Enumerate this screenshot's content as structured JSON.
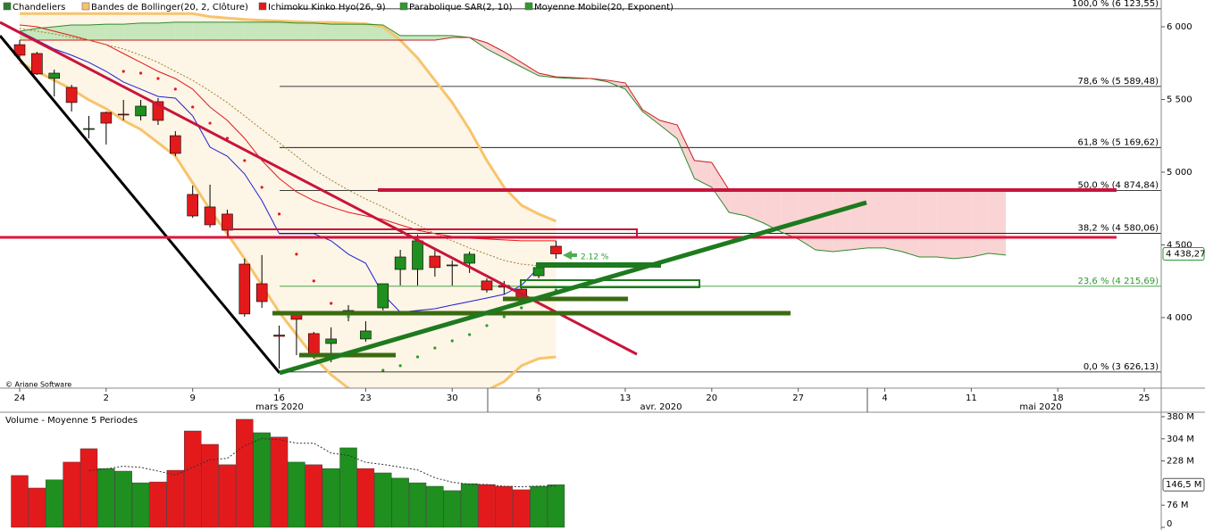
{
  "chart_data": [
    {
      "type": "candlestick",
      "categories": [
        "24",
        null,
        null,
        null,
        null,
        "2",
        null,
        null,
        null,
        null,
        "9",
        null,
        null,
        null,
        null,
        "16",
        null,
        null,
        null,
        null,
        "23",
        null,
        null,
        null,
        null,
        "30",
        null,
        null,
        null,
        null,
        "6",
        null,
        null,
        null,
        null,
        "13",
        null,
        null,
        null,
        null,
        "20",
        null,
        null,
        null,
        null,
        "27",
        null,
        null,
        null,
        null,
        "4",
        null,
        null,
        null,
        null,
        "11",
        null,
        null,
        null,
        null,
        "18",
        null,
        null,
        null,
        null,
        "25",
        null
      ],
      "candles": {
        "name": "Chandeliers",
        "color": "#2d7d2d",
        "up_color": "#1f8f1f",
        "down_color": "#e31a1c",
        "open": [
          5877,
          5816,
          5645,
          5583,
          5294,
          5411,
          5399,
          5387,
          5485,
          5251,
          4847,
          4761,
          4712,
          4368,
          4233,
          3880,
          4025,
          3890,
          3822,
          4045,
          3853,
          4067,
          4331,
          4331,
          4423,
          4360,
          4374,
          4252,
          4221,
          4196,
          4288,
          4491,
          null,
          null,
          null,
          null,
          null,
          null,
          null,
          null,
          null,
          null,
          null,
          null,
          null,
          null,
          null,
          null,
          null,
          null,
          null,
          null,
          null,
          null,
          null,
          null,
          null,
          null,
          null,
          null,
          null,
          null,
          null,
          null,
          null,
          null,
          null
        ],
        "high": [
          5908,
          5828,
          5705,
          5601,
          5387,
          5417,
          5497,
          5497,
          5509,
          5282,
          4908,
          4914,
          4742,
          4405,
          4430,
          3945,
          4037,
          3902,
          3933,
          4086,
          3975,
          4233,
          4466,
          4571,
          4466,
          4393,
          4454,
          4270,
          4252,
          4209,
          4362,
          4528,
          null,
          null,
          null,
          null,
          null,
          null,
          null,
          null,
          null,
          null,
          null,
          null,
          null,
          null,
          null,
          null,
          null,
          null,
          null,
          null,
          null,
          null,
          null,
          null,
          null,
          null,
          null,
          null,
          null,
          null,
          null,
          null,
          null,
          null,
          null
        ],
        "low": [
          5779,
          5669,
          5521,
          5417,
          5233,
          5190,
          5356,
          5356,
          5325,
          5110,
          4687,
          4620,
          4577,
          4006,
          4067,
          3650,
          3742,
          3718,
          3693,
          3975,
          3834,
          4049,
          4221,
          4221,
          4282,
          4221,
          4307,
          4172,
          4160,
          4135,
          4270,
          4405,
          null,
          null,
          null,
          null,
          null,
          null,
          null,
          null,
          null,
          null,
          null,
          null,
          null,
          null,
          null,
          null,
          null,
          null,
          null,
          null,
          null,
          null,
          null,
          null,
          null,
          null,
          null,
          null,
          null,
          null,
          null,
          null,
          null,
          null,
          null
        ],
        "close": [
          5804,
          5675,
          5681,
          5479,
          5300,
          5337,
          5395,
          5454,
          5356,
          5129,
          4699,
          4638,
          4601,
          4025,
          4110,
          3871,
          3988,
          3742,
          3853,
          4049,
          3908,
          4233,
          4417,
          4528,
          4344,
          4362,
          4436,
          4190,
          4209,
          4141,
          4344,
          4438.27,
          null,
          null,
          null,
          null,
          null,
          null,
          null,
          null,
          null,
          null,
          null,
          null,
          null,
          null,
          null,
          null,
          null,
          null,
          null,
          null,
          null,
          null,
          null,
          null,
          null,
          null,
          null,
          null,
          null,
          null,
          null,
          null,
          null,
          null,
          null
        ]
      },
      "bollinger": {
        "name": "Bandes de Bollinger(20, 2, Clôture)",
        "color": "#f7c46c",
        "fill": "#fdf5e6",
        "upper": [
          6090,
          6090,
          6090,
          6090,
          6090,
          6090,
          6090,
          6090,
          6090,
          6090,
          6090,
          6070,
          6060,
          6050,
          6045,
          6040,
          6035,
          6030,
          6030,
          6025,
          6020,
          6000,
          5908,
          5785,
          5632,
          5479,
          5294,
          5080,
          4896,
          4773,
          4712,
          4663,
          null,
          null,
          null,
          null,
          null,
          null,
          null,
          null,
          null,
          null,
          null,
          null,
          null,
          null,
          null,
          null,
          null,
          null,
          null,
          null,
          null,
          null,
          null,
          null,
          null,
          null,
          null,
          null,
          null,
          null,
          null,
          null,
          null,
          null,
          null
        ],
        "lower": [
          5755,
          5693,
          5632,
          5571,
          5497,
          5436,
          5356,
          5294,
          5202,
          5110,
          4926,
          4742,
          4577,
          4405,
          4221,
          4037,
          3883,
          3730,
          3607,
          3515,
          3454,
          3423,
          3423,
          3430,
          3440,
          3454,
          3470,
          3500,
          3560,
          3669,
          3718,
          3730,
          null,
          null,
          null,
          null,
          null,
          null,
          null,
          null,
          null,
          null,
          null,
          null,
          null,
          null,
          null,
          null,
          null,
          null,
          null,
          null,
          null,
          null,
          null,
          null,
          null,
          null,
          null,
          null,
          null,
          null,
          null,
          null,
          null,
          null,
          null
        ]
      },
      "ichimoku": {
        "name": "Ichimoku Kinko Hyo(26, 9)",
        "color": "#e31a1c",
        "tenkan_color": "#1f1fd6",
        "kijun_color": "#e31a1c",
        "span_a_color": "#2e8b2e",
        "span_b_color": "#c81e1e",
        "cloud_up_color": "#b9e2b0",
        "cloud_down_color": "#f9c9c9",
        "tenkan": [
          5969,
          5908,
          5847,
          5804,
          5755,
          5693,
          5620,
          5571,
          5521,
          5509,
          5387,
          5172,
          5110,
          4988,
          4804,
          4577,
          4577,
          4577,
          4528,
          4436,
          4374,
          4160,
          4037,
          4049,
          4061,
          4086,
          4110,
          4135,
          4160,
          4221,
          4344,
          4362,
          null,
          null,
          null,
          null,
          null,
          null,
          null,
          null,
          null,
          null,
          null,
          null,
          null,
          null,
          null,
          null,
          null,
          null,
          null,
          null,
          null,
          null,
          null,
          null,
          null,
          null,
          null,
          null,
          null,
          null,
          null,
          null,
          null,
          null,
          null
        ],
        "kijun": [
          6012,
          6000,
          5969,
          5939,
          5908,
          5877,
          5816,
          5755,
          5693,
          5644,
          5571,
          5448,
          5356,
          5233,
          5080,
          4957,
          4865,
          4804,
          4761,
          4724,
          4699,
          4675,
          4638,
          4601,
          4577,
          4558,
          4546,
          4540,
          4534,
          4528,
          4528,
          4528,
          null,
          null,
          null,
          null,
          null,
          null,
          null,
          null,
          null,
          null,
          null,
          null,
          null,
          null,
          null,
          null,
          null,
          null,
          null,
          null,
          null,
          null,
          null,
          null,
          null,
          null,
          null,
          null,
          null,
          null,
          null,
          null,
          null,
          null,
          null
        ],
        "span_a": [
          5969,
          5988,
          6000,
          6012,
          6012,
          6018,
          6018,
          6025,
          6025,
          6031,
          6031,
          6031,
          6031,
          6031,
          6031,
          6031,
          6025,
          6025,
          6018,
          6018,
          6018,
          6012,
          5939,
          5939,
          5939,
          5939,
          5926,
          5847,
          5785,
          5724,
          5663,
          5650,
          5644,
          5644,
          5620,
          5571,
          5417,
          5325,
          5230,
          4957,
          4896,
          4724,
          4699,
          4650,
          4589,
          4540,
          4466,
          4454,
          4466,
          4479,
          4479,
          4454,
          4417,
          4417,
          4405,
          4417,
          4442,
          4430,
          null,
          null,
          null,
          null,
          null,
          null,
          null,
          null,
          null
        ],
        "span_b": [
          5908,
          5908,
          5908,
          5908,
          5908,
          5908,
          5908,
          5908,
          5908,
          5908,
          5908,
          5908,
          5908,
          5908,
          5908,
          5908,
          5908,
          5908,
          5908,
          5908,
          5908,
          5908,
          5908,
          5908,
          5908,
          5926,
          5926,
          5890,
          5828,
          5755,
          5681,
          5656,
          5650,
          5644,
          5632,
          5614,
          5430,
          5356,
          5325,
          5080,
          5067,
          4877,
          4875,
          4875,
          4875,
          4875,
          4875,
          4875,
          4875,
          4875,
          4875,
          4875,
          4875,
          4875,
          4875,
          4875,
          4875,
          4875,
          null,
          null,
          null,
          null,
          null,
          null,
          null,
          null,
          null
        ]
      },
      "sar": {
        "name": "Parabolique SAR(2, 10)",
        "color": "#2e9b2e",
        "above_color": "#e31a1c",
        "below_color": "#2e9b2e",
        "values": [
          null,
          null,
          null,
          null,
          null,
          null,
          5693,
          5681,
          5644,
          5571,
          5448,
          5337,
          5233,
          5080,
          4896,
          4712,
          4436,
          4252,
          4098,
          4006,
          null,
          3638,
          3669,
          3730,
          3791,
          3840,
          3883,
          3945,
          4006,
          4067,
          4129,
          4190,
          null,
          null,
          null,
          null,
          null,
          null,
          null,
          null,
          null,
          null,
          null,
          null,
          null,
          null,
          null,
          null,
          null,
          null,
          null,
          null,
          null,
          null,
          null,
          null,
          null,
          null,
          null,
          null,
          null,
          null,
          null,
          null,
          null,
          null,
          null
        ]
      },
      "ema": {
        "name": "Moyenne Mobile(20, Exponent)",
        "color": "#2e9b2e",
        "line_color": "#a08030",
        "values": [
          5988,
          5969,
          5951,
          5926,
          5908,
          5877,
          5847,
          5804,
          5755,
          5693,
          5632,
          5558,
          5479,
          5387,
          5294,
          5202,
          5110,
          5018,
          4945,
          4877,
          4816,
          4761,
          4699,
          4638,
          4577,
          4528,
          4479,
          4436,
          4393,
          4368,
          4356,
          4344,
          null,
          null,
          null,
          null,
          null,
          null,
          null,
          null,
          null,
          null,
          null,
          null,
          null,
          null,
          null,
          null,
          null,
          null,
          null,
          null,
          null,
          null,
          null,
          null,
          null,
          null,
          null,
          null,
          null,
          null,
          null,
          null,
          null,
          null,
          null
        ]
      },
      "ylim": [
        3515,
        6184
      ],
      "yticks": [
        {
          "value": 4000,
          "label": "4 000"
        },
        {
          "value": 4500,
          "label": "4 500"
        },
        {
          "value": 5000,
          "label": "5 000"
        },
        {
          "value": 5500,
          "label": "5 500"
        },
        {
          "value": 6000,
          "label": "6 000"
        }
      ],
      "fib_levels": [
        {
          "value": 6123.55,
          "label": "100,0 % (6 123,55)",
          "color": "#000000"
        },
        {
          "value": 5589.48,
          "label": "78,6 % (5 589,48)",
          "color": "#000000"
        },
        {
          "value": 5169.62,
          "label": "61,8 % (5 169,62)",
          "color": "#000000"
        },
        {
          "value": 4874.84,
          "label": "50,0 % (4 874,84)",
          "color": "#000000"
        },
        {
          "value": 4580.06,
          "label": "38,2 % (4 580,06)",
          "color": "#000000"
        },
        {
          "value": 4215.69,
          "label": "23,6 % (4 215,69)",
          "color": "#2e9b2e"
        },
        {
          "value": 3626.13,
          "label": "0,0 % (3 626,13)",
          "color": "#000000"
        }
      ],
      "last_price": {
        "value": 4438.27,
        "label": "4 438,27"
      },
      "annotation": "2.12 %",
      "month_labels": [
        "mars 2020",
        "avr. 2020",
        "mai 2020"
      ],
      "copyright": "© Ariane Software"
    },
    {
      "type": "bar",
      "title": "Volume  - Moyenne 5 Periodes",
      "values": [
        178,
        135,
        163,
        224,
        270,
        202,
        193,
        153,
        156,
        196,
        331,
        285,
        215,
        371,
        325,
        310,
        224,
        215,
        202,
        273,
        202,
        187,
        169,
        153,
        141,
        126,
        150,
        147,
        141,
        129,
        141,
        146.5
      ],
      "colors": [
        "#e31a1c",
        "#e31a1c",
        "#1f8f1f",
        "#e31a1c",
        "#e31a1c",
        "#1f8f1f",
        "#1f8f1f",
        "#1f8f1f",
        "#e31a1c",
        "#e31a1c",
        "#e31a1c",
        "#e31a1c",
        "#e31a1c",
        "#e31a1c",
        "#1f8f1f",
        "#e31a1c",
        "#1f8f1f",
        "#e31a1c",
        "#1f8f1f",
        "#1f8f1f",
        "#e31a1c",
        "#1f8f1f",
        "#1f8f1f",
        "#1f8f1f",
        "#1f8f1f",
        "#1f8f1f",
        "#1f8f1f",
        "#e31a1c",
        "#e31a1c",
        "#e31a1c",
        "#1f8f1f",
        "#1f8f1f"
      ],
      "average": [
        null,
        null,
        null,
        null,
        195,
        201,
        210,
        206,
        193,
        180,
        206,
        232,
        237,
        280,
        305,
        301,
        289,
        289,
        255,
        247,
        223,
        216,
        207,
        197,
        170,
        155,
        148,
        147,
        141,
        139,
        142,
        141
      ],
      "ylim": [
        0,
        380
      ],
      "yticks": [
        0,
        {
          "value": 76,
          "label": "76 M"
        },
        {
          "value": 228,
          "label": "228 M"
        },
        {
          "value": 304,
          "label": "304 M"
        },
        {
          "value": 380,
          "label": "380 M"
        }
      ],
      "last_value": {
        "value": 146.5,
        "label": "146,5 M"
      }
    }
  ]
}
